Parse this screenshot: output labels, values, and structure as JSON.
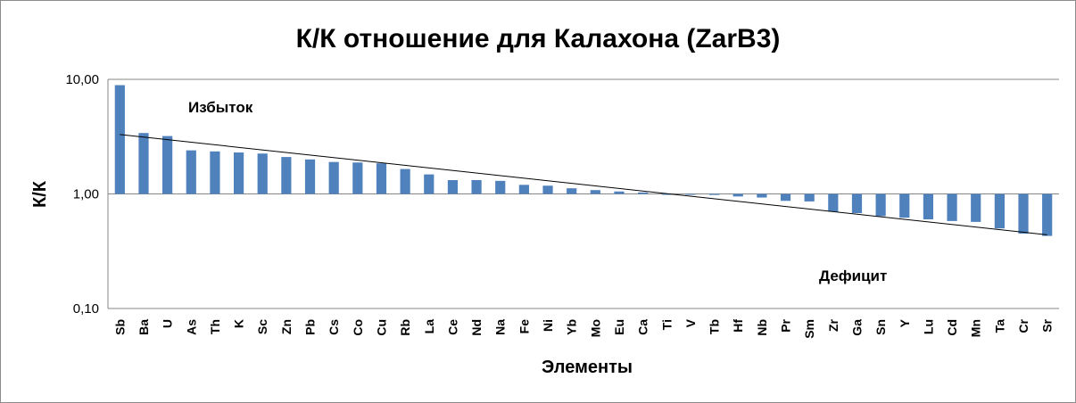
{
  "chart_data": {
    "type": "bar",
    "title": "К/К отношение для Калахона (ZarB3)",
    "xlabel": "Элементы",
    "ylabel": "К/К",
    "yscale": "log",
    "ylim": [
      0.1,
      10
    ],
    "yticks": [
      10,
      1,
      0.1
    ],
    "ytick_labels": [
      "10,00",
      "1,00",
      "0,10"
    ],
    "grid": "horizontal major gridlines",
    "legend": "none",
    "categories": [
      "Sb",
      "Ba",
      "U",
      "As",
      "Th",
      "K",
      "Sc",
      "Zn",
      "Pb",
      "Cs",
      "Co",
      "Cu",
      "Rb",
      "La",
      "Ce",
      "Nd",
      "Na",
      "Fe",
      "Ni",
      "Yb",
      "Mo",
      "Eu",
      "Ca",
      "Ti",
      "V",
      "Tb",
      "Hf",
      "Nb",
      "Pr",
      "Sm",
      "Zr",
      "Ga",
      "Sn",
      "Y",
      "Lu",
      "Cd",
      "Mn",
      "Ta",
      "Cr",
      "Sr"
    ],
    "values": [
      8.9,
      3.4,
      3.2,
      2.4,
      2.35,
      2.3,
      2.25,
      2.1,
      2.0,
      1.9,
      1.88,
      1.85,
      1.65,
      1.48,
      1.32,
      1.32,
      1.3,
      1.2,
      1.18,
      1.12,
      1.08,
      1.05,
      1.03,
      1.0,
      1.0,
      0.98,
      0.95,
      0.93,
      0.87,
      0.86,
      0.7,
      0.68,
      0.64,
      0.62,
      0.6,
      0.58,
      0.57,
      0.5,
      0.45,
      0.43
    ],
    "trendline": {
      "start": 3.3,
      "end": 0.44
    },
    "annotations": [
      "Избыток",
      "Дефицит"
    ],
    "colors": {
      "bar": "#4f81bd",
      "grid": "#868686",
      "trend": "#000000"
    }
  }
}
